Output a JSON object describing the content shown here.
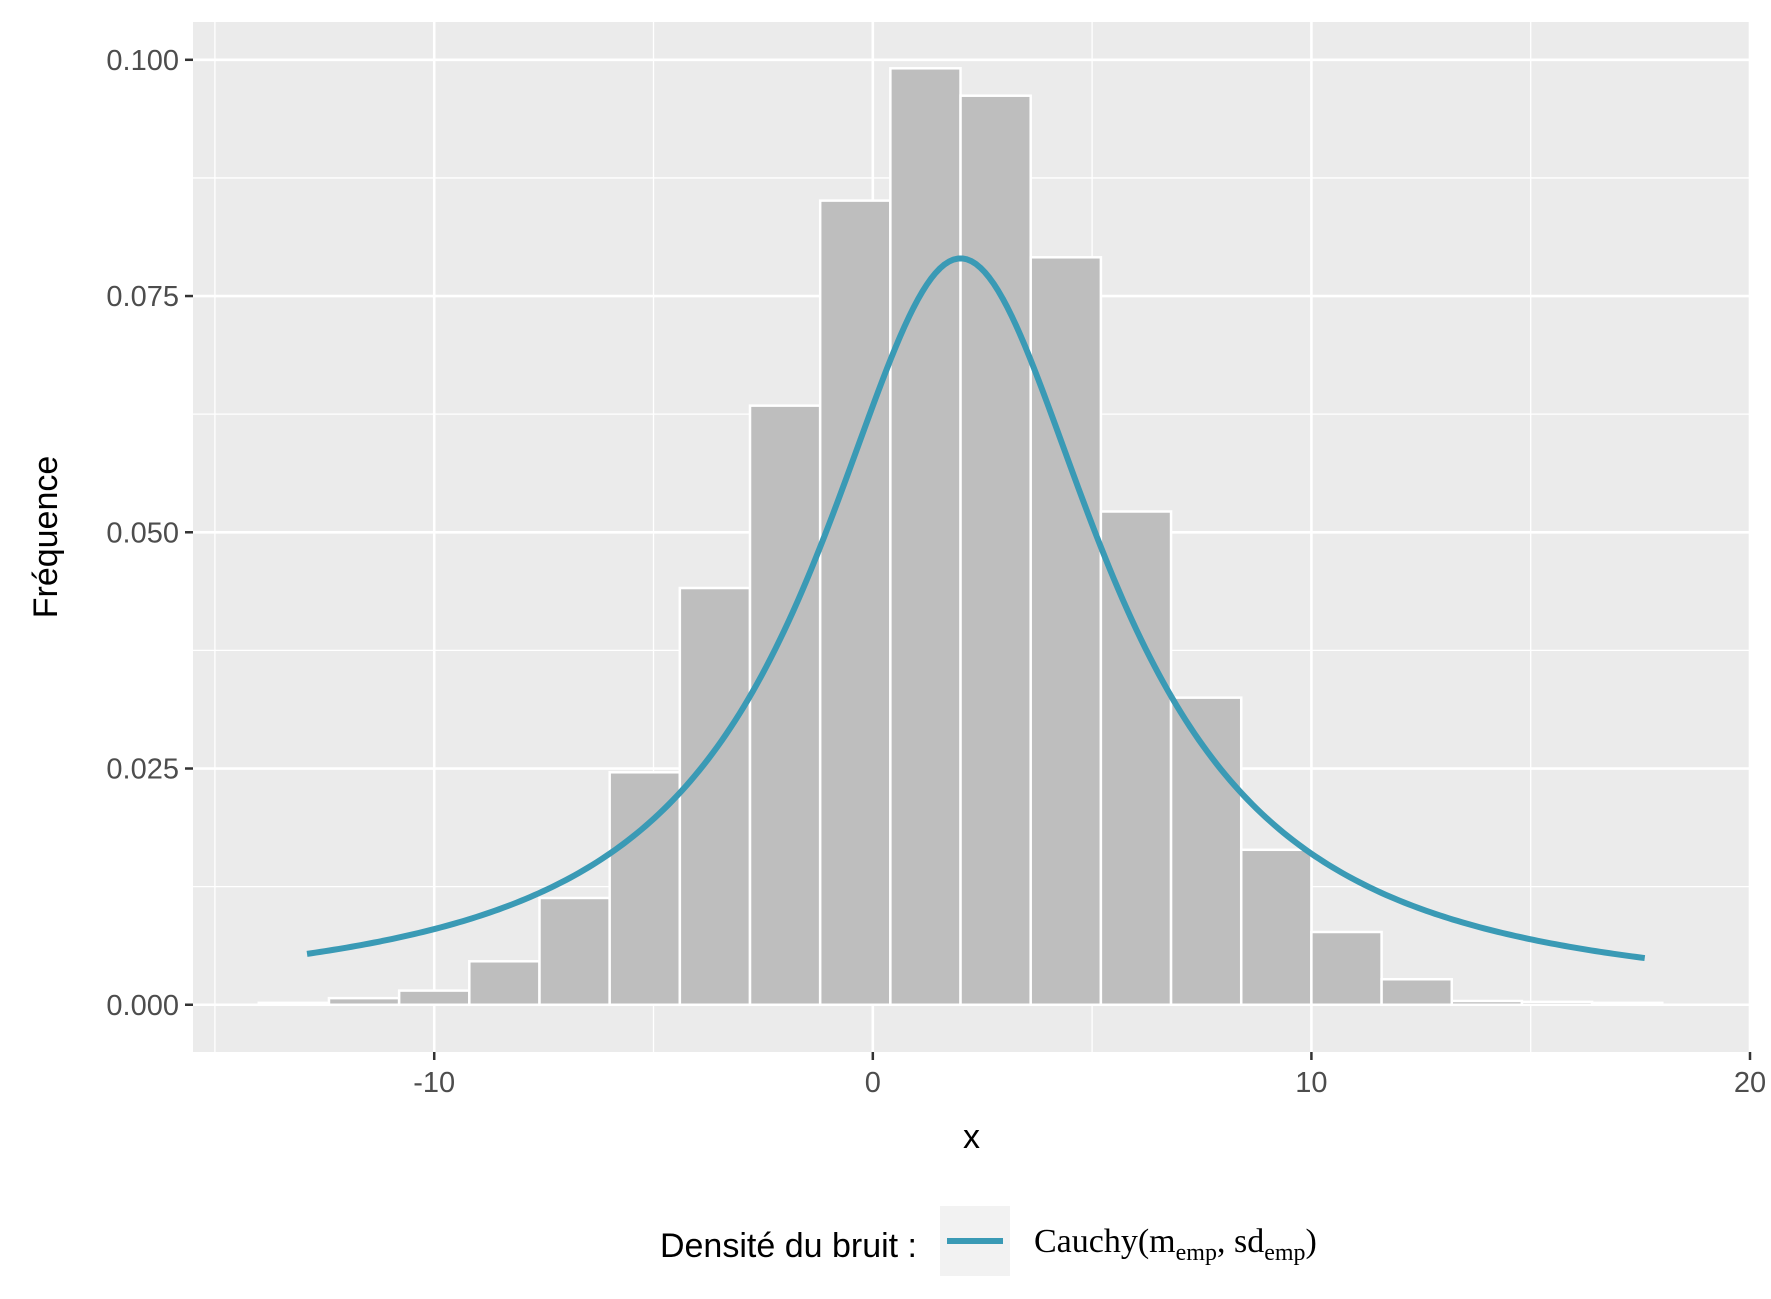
{
  "chart_data": {
    "type": "bar",
    "title": "",
    "xlabel": "x",
    "ylabel": "Fréquence",
    "xlim": [
      -15.5,
      20
    ],
    "ylim": [
      -0.005,
      0.104
    ],
    "x_ticks": [
      -10,
      0,
      10,
      20
    ],
    "x_tick_labels": [
      "-10",
      "0",
      "10",
      "20"
    ],
    "y_ticks": [
      0,
      0.025,
      0.05,
      0.075,
      0.1
    ],
    "y_tick_labels": [
      "0.000",
      "0.025",
      "0.050",
      "0.075",
      "0.100"
    ],
    "grid": true,
    "legend": {
      "position": "bottom",
      "title": "Densité du bruit :",
      "entries": [
        {
          "prefix": "Cauchy(m",
          "sub1": "emp",
          "mid": ", sd",
          "sub2": "emp",
          "suffix": ")"
        }
      ]
    },
    "histogram": {
      "bin_width": 1.6,
      "bins": [
        {
          "x0": -14.0,
          "x1": -12.4,
          "value": 0.0002
        },
        {
          "x0": -12.4,
          "x1": -10.8,
          "value": 0.0007
        },
        {
          "x0": -10.8,
          "x1": -9.2,
          "value": 0.0015
        },
        {
          "x0": -9.2,
          "x1": -7.6,
          "value": 0.0046
        },
        {
          "x0": -7.6,
          "x1": -6.0,
          "value": 0.0113
        },
        {
          "x0": -6.0,
          "x1": -4.4,
          "value": 0.0246
        },
        {
          "x0": -4.4,
          "x1": -2.8,
          "value": 0.0441
        },
        {
          "x0": -2.8,
          "x1": -1.2,
          "value": 0.0634
        },
        {
          "x0": -1.2,
          "x1": 0.4,
          "value": 0.0851
        },
        {
          "x0": 0.4,
          "x1": 2.0,
          "value": 0.0991
        },
        {
          "x0": 2.0,
          "x1": 3.6,
          "value": 0.0962
        },
        {
          "x0": 3.6,
          "x1": 5.2,
          "value": 0.0791
        },
        {
          "x0": 5.2,
          "x1": 6.8,
          "value": 0.0522
        },
        {
          "x0": 6.8,
          "x1": 8.4,
          "value": 0.0325
        },
        {
          "x0": 8.4,
          "x1": 10.0,
          "value": 0.0164
        },
        {
          "x0": 10.0,
          "x1": 11.6,
          "value": 0.0077
        },
        {
          "x0": 11.6,
          "x1": 13.2,
          "value": 0.0027
        },
        {
          "x0": 13.2,
          "x1": 14.8,
          "value": 0.0004
        },
        {
          "x0": 14.8,
          "x1": 16.4,
          "value": 0.0003
        },
        {
          "x0": 16.4,
          "x1": 18.0,
          "value": 0.0002
        }
      ]
    },
    "series": [
      {
        "name": "Cauchy(memp, sdemp)",
        "kind": "density-line",
        "color": "#3a9ab5",
        "distribution": {
          "family": "cauchy",
          "location": 2.0,
          "scale": 4.03
        },
        "x_range": [
          -12.9,
          17.6
        ]
      }
    ],
    "colors": {
      "panel_background": "#ebebeb",
      "grid_line": "#ffffff",
      "bar_fill": "#bebebe",
      "bar_stroke": "#ffffff",
      "legend_key_background": "#f2f2f2"
    }
  }
}
